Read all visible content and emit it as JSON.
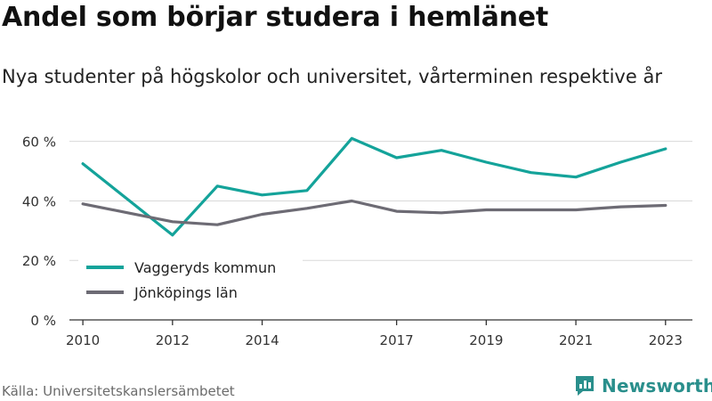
{
  "title": "Andel som börjar studera i hemlänet",
  "subtitle": "Nya studenter på högskolor och universitet, vårterminen respektive år",
  "source": "Källa: Universitetskanslersämbetet",
  "brand": "Newsworthy",
  "colors": {
    "vaggeryd": "#14a39a",
    "jonkoping": "#6d6b74",
    "grid": "#d9d9d9",
    "axis": "#333333"
  },
  "chart_data": {
    "type": "line",
    "x": [
      2010,
      2011,
      2012,
      2013,
      2014,
      2015,
      2016,
      2017,
      2018,
      2019,
      2020,
      2021,
      2022,
      2023
    ],
    "x_tick_labels": [
      "2010",
      "2012",
      "2014",
      "2017",
      "2019",
      "2021",
      "2023"
    ],
    "y_tick_labels": [
      "0 %",
      "20 %",
      "40 %",
      "60 %"
    ],
    "ylim": [
      0,
      62
    ],
    "series": [
      {
        "name": "Vaggeryds kommun",
        "color": "#14a39a",
        "values": [
          52.5,
          40.5,
          28.5,
          45.0,
          42.0,
          43.5,
          61.0,
          54.5,
          57.0,
          53.0,
          49.5,
          48.0,
          53.0,
          57.5
        ]
      },
      {
        "name": "Jönköpings län",
        "color": "#6d6b74",
        "values": [
          39.0,
          36.0,
          33.0,
          32.0,
          35.5,
          37.5,
          40.0,
          36.5,
          36.0,
          37.0,
          37.0,
          37.0,
          38.0,
          38.5
        ]
      }
    ],
    "legend": "inside bottom-left",
    "grid": true
  }
}
